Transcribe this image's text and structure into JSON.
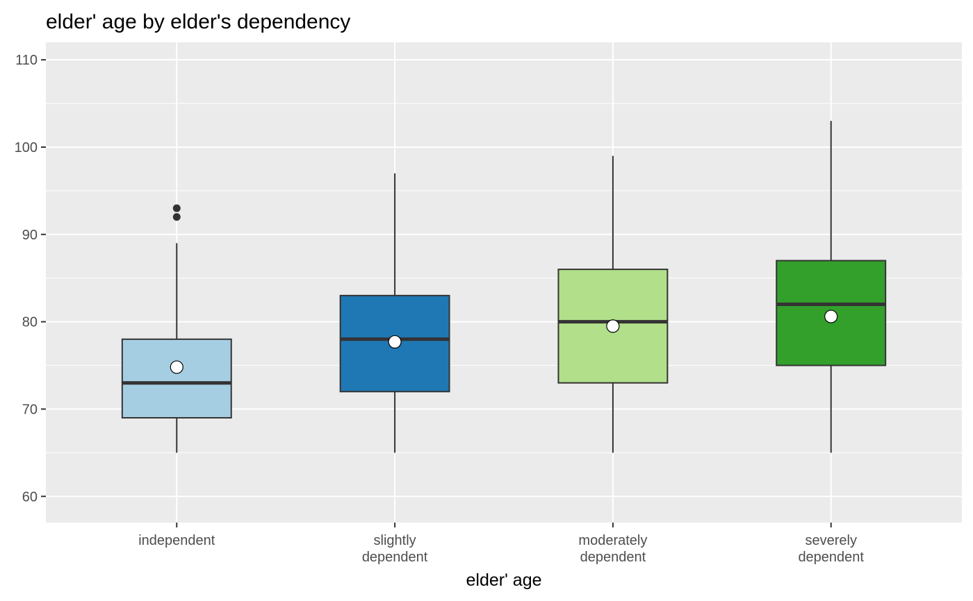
{
  "chart_data": {
    "type": "box",
    "title": "elder' age by elder's dependency",
    "xlabel": "elder' age",
    "ylabel": "",
    "ylim": [
      57,
      112
    ],
    "yticks": [
      60,
      70,
      80,
      90,
      100,
      110
    ],
    "grid": true,
    "legend": "none",
    "categories": [
      {
        "label_lines": [
          "independent"
        ],
        "color": "#a6cee3",
        "whisker_low": 65,
        "q1": 69,
        "median": 73,
        "q3": 78,
        "whisker_high": 89,
        "mean": 74.8,
        "outliers": [
          92,
          93
        ]
      },
      {
        "label_lines": [
          "slightly",
          "dependent"
        ],
        "color": "#1f78b4",
        "whisker_low": 65,
        "q1": 72,
        "median": 78,
        "q3": 83,
        "whisker_high": 97,
        "mean": 77.7,
        "outliers": []
      },
      {
        "label_lines": [
          "moderately",
          "dependent"
        ],
        "color": "#b2df8a",
        "whisker_low": 65,
        "q1": 73,
        "median": 80,
        "q3": 86,
        "whisker_high": 99,
        "mean": 79.5,
        "outliers": []
      },
      {
        "label_lines": [
          "severely",
          "dependent"
        ],
        "color": "#33a02c",
        "whisker_low": 65,
        "q1": 75,
        "median": 82,
        "q3": 87,
        "whisker_high": 103,
        "mean": 80.6,
        "outliers": []
      }
    ],
    "panel_color": "#ebebeb",
    "gridline_color": "#ffffff",
    "outline_color": "#333333"
  }
}
